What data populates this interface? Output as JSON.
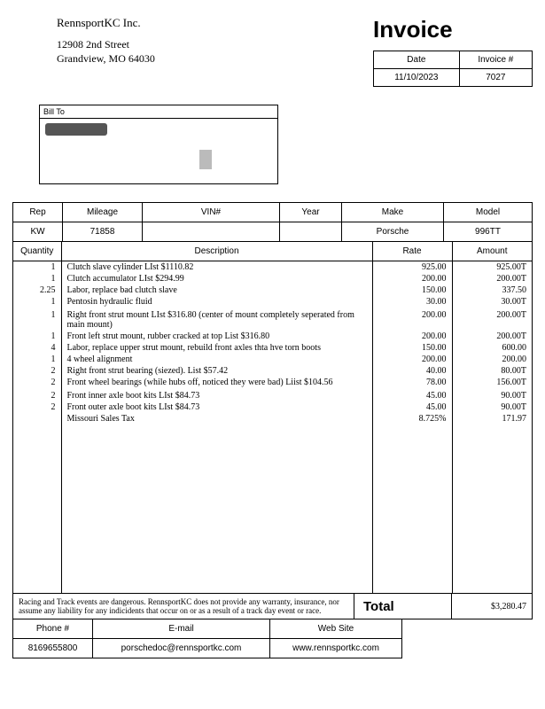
{
  "company": {
    "name": "RennsportKC Inc.",
    "street": "12908 2nd Street",
    "citystate": "Grandview, MO 64030"
  },
  "invoice_title": "Invoice",
  "meta": {
    "date_label": "Date",
    "invno_label": "Invoice #",
    "date": "11/10/2023",
    "invno": "7027"
  },
  "billto_label": "Bill To",
  "vehicle": {
    "headers": {
      "rep": "Rep",
      "mileage": "Mileage",
      "vin": "VIN#",
      "year": "Year",
      "make": "Make",
      "model": "Model"
    },
    "rep": "KW",
    "mileage": "71858",
    "vin": "",
    "year": "",
    "make": "Porsche",
    "model": "996TT"
  },
  "items_headers": {
    "qty": "Quantity",
    "desc": "Description",
    "rate": "Rate",
    "amount": "Amount"
  },
  "lines": [
    {
      "qty": "1",
      "desc": "Clutch slave cylinder LIst $1110.82",
      "rate": "925.00",
      "amount": "925.00T"
    },
    {
      "qty": "1",
      "desc": "Clutch accumulator LIst $294.99",
      "rate": "200.00",
      "amount": "200.00T"
    },
    {
      "qty": "2.25",
      "desc": "Labor, replace bad clutch slave",
      "rate": "150.00",
      "amount": "337.50"
    },
    {
      "qty": "1",
      "desc": "Pentosin hydraulic fluid",
      "rate": "30.00",
      "amount": "30.00T"
    },
    {
      "qty": "",
      "desc": "",
      "rate": "",
      "amount": ""
    },
    {
      "qty": "1",
      "desc": "Right front strut mount LIst $316.80 (center of mount completely seperated from main mount)",
      "rate": "200.00",
      "amount": "200.00T"
    },
    {
      "qty": "1",
      "desc": "Front left strut mount, rubber cracked at top List $316.80",
      "rate": "200.00",
      "amount": "200.00T"
    },
    {
      "qty": "4",
      "desc": "Labor, replace upper strut mount, rebuild front axles thta hve torn boots",
      "rate": "150.00",
      "amount": "600.00"
    },
    {
      "qty": "1",
      "desc": "4 wheel alignment",
      "rate": "200.00",
      "amount": "200.00"
    },
    {
      "qty": "2",
      "desc": "Right front strut bearing (siezed).  List $57.42",
      "rate": "40.00",
      "amount": "80.00T"
    },
    {
      "qty": "2",
      "desc": "Front wheel bearings (while hubs off, noticed they were bad) Liist $104.56",
      "rate": "78.00",
      "amount": "156.00T"
    },
    {
      "qty": "",
      "desc": "",
      "rate": "",
      "amount": ""
    },
    {
      "qty": "2",
      "desc": "Front inner axle boot kits LIst $84.73",
      "rate": "45.00",
      "amount": "90.00T"
    },
    {
      "qty": "2",
      "desc": "Front outer axle boot kits LIst $84.73",
      "rate": "45.00",
      "amount": "90.00T"
    },
    {
      "qty": "",
      "desc": "Missouri Sales Tax",
      "rate": "8.725%",
      "amount": "171.97"
    }
  ],
  "disclaimer": "Racing and Track events are dangerous.  RennsportKC does not provide any warranty, insurance, nor assume any liability for any indicidents that occur on or as a result of a track day event or race.",
  "total_label": "Total",
  "total_amount": "$3,280.47",
  "contact": {
    "headers": {
      "phone": "Phone #",
      "email": "E-mail",
      "web": "Web Site"
    },
    "phone": "8169655800",
    "email": "porschedoc@rennsportkc.com",
    "web": "www.rennsportkc.com"
  }
}
